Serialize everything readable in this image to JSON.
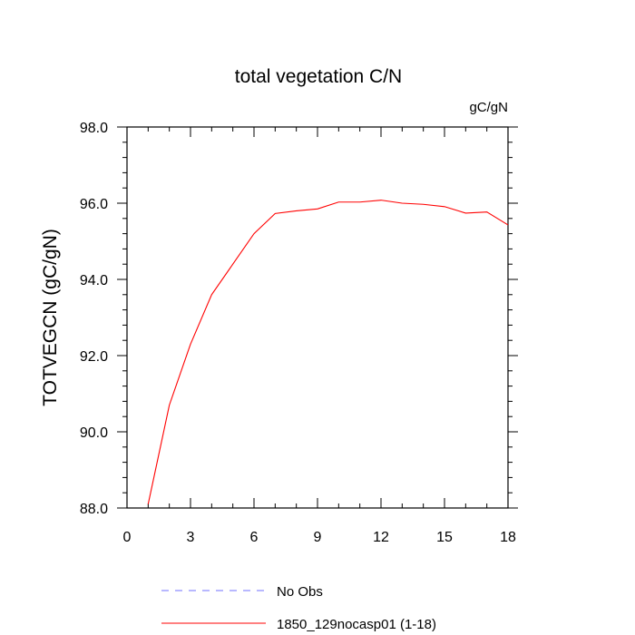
{
  "chart_data": {
    "type": "line",
    "title": "total vegetation C/N",
    "units_label": "gC/gN",
    "ylabel": "TOTVEGCN  (gC/gN)",
    "xlabel": "",
    "xlim": [
      0,
      18
    ],
    "ylim": [
      88.0,
      98.0
    ],
    "x_ticks": [
      0,
      3,
      6,
      9,
      12,
      15,
      18
    ],
    "x_tick_labels": [
      "0",
      "3",
      "6",
      "9",
      "12",
      "15",
      "18"
    ],
    "y_ticks": [
      88.0,
      90.0,
      92.0,
      94.0,
      96.0,
      98.0
    ],
    "y_tick_labels": [
      "88.0",
      "90.0",
      "92.0",
      "94.0",
      "96.0",
      "98.0"
    ],
    "grid": false,
    "legend_position": "bottom",
    "series": [
      {
        "name": "No Obs",
        "color": "#7070ff",
        "style": "dashed",
        "x": [],
        "values": []
      },
      {
        "name": "1850_129nocasp01 (1-18)",
        "color": "#ff0000",
        "style": "solid",
        "x": [
          1,
          2,
          3,
          4,
          5,
          6,
          7,
          8,
          9,
          10,
          11,
          12,
          13,
          14,
          15,
          16,
          17,
          18
        ],
        "values": [
          88.1,
          90.7,
          92.3,
          93.6,
          94.4,
          95.2,
          95.73,
          95.8,
          95.85,
          96.03,
          96.03,
          96.08,
          96.0,
          95.97,
          95.91,
          95.74,
          95.77,
          95.43
        ]
      }
    ]
  }
}
